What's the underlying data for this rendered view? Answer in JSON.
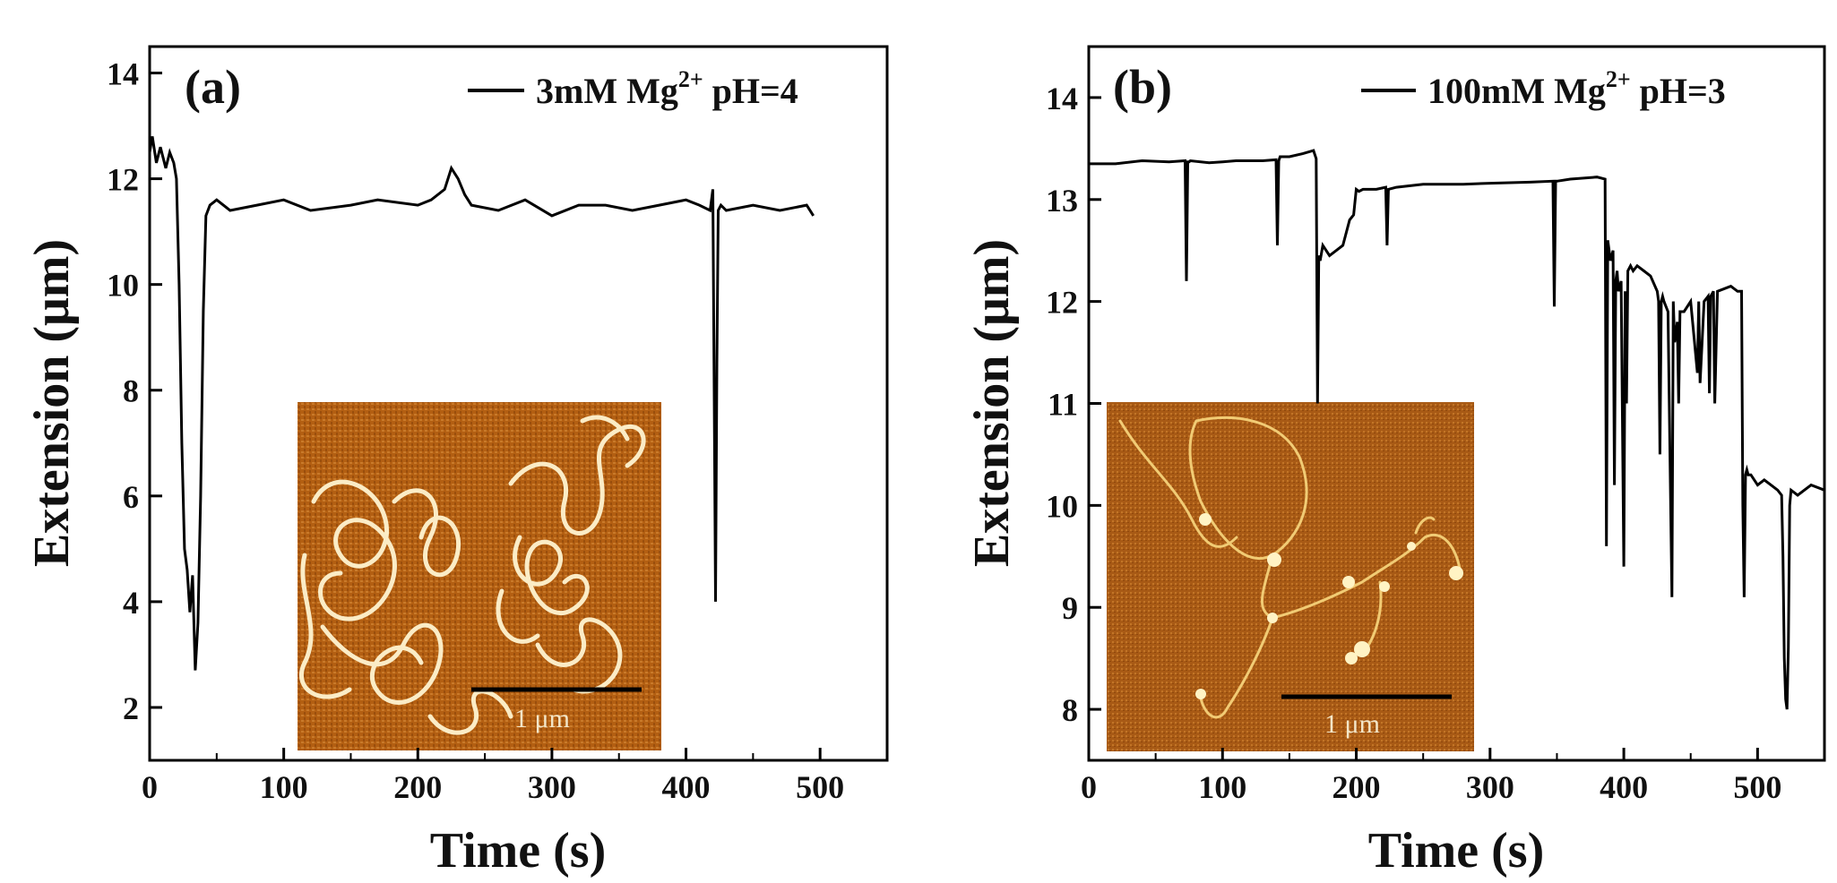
{
  "chart_data": [
    {
      "type": "line",
      "panel_label": "(a)",
      "legend": {
        "label_main": "3mM Mg",
        "label_sup": "2+",
        "label_tail": " pH=4",
        "position": "top-right"
      },
      "xlabel": "Time (s)",
      "ylabel": "Extension (μm)",
      "xlim": [
        0,
        550
      ],
      "ylim": [
        1,
        14.5
      ],
      "xticks": [
        0,
        100,
        200,
        300,
        400,
        500
      ],
      "yticks": [
        2,
        4,
        6,
        8,
        10,
        12,
        14
      ],
      "series": [
        {
          "name": "3mM Mg2+ pH=4",
          "x": [
            0,
            2,
            5,
            8,
            12,
            15,
            18,
            20,
            22,
            24,
            26,
            28,
            30,
            32,
            34,
            36,
            38,
            40,
            42,
            45,
            50,
            60,
            80,
            100,
            120,
            150,
            170,
            200,
            210,
            220,
            225,
            230,
            235,
            240,
            260,
            280,
            300,
            320,
            340,
            360,
            380,
            400,
            410,
            418,
            420,
            421,
            422,
            423,
            424,
            426,
            430,
            450,
            470,
            490,
            495
          ],
          "y": [
            12.5,
            12.8,
            12.3,
            12.6,
            12.2,
            12.5,
            12.3,
            12.0,
            10.0,
            7.0,
            5.0,
            4.6,
            3.8,
            4.5,
            2.7,
            3.6,
            6.0,
            9.5,
            11.3,
            11.5,
            11.6,
            11.4,
            11.5,
            11.6,
            11.4,
            11.5,
            11.6,
            11.5,
            11.6,
            11.8,
            12.2,
            12.0,
            11.7,
            11.5,
            11.4,
            11.6,
            11.3,
            11.5,
            11.5,
            11.4,
            11.5,
            11.6,
            11.5,
            11.4,
            11.8,
            8.0,
            4.0,
            8.5,
            11.4,
            11.5,
            11.4,
            11.5,
            11.4,
            11.5,
            11.3
          ]
        }
      ],
      "inset": {
        "description_caption": "1 μm"
      }
    },
    {
      "type": "line",
      "panel_label": "(b)",
      "legend": {
        "label_main": "100mM Mg",
        "label_sup": "2+",
        "label_tail": " pH=3",
        "position": "top-right"
      },
      "xlabel": "Time (s)",
      "ylabel": "Extension (μm)",
      "xlim": [
        0,
        550
      ],
      "ylim": [
        7.5,
        14.5
      ],
      "xticks": [
        0,
        100,
        200,
        300,
        400,
        500
      ],
      "yticks": [
        8,
        9,
        10,
        11,
        12,
        13,
        14
      ],
      "series": [
        {
          "name": "100mM Mg2+ pH=3",
          "x": [
            0,
            20,
            40,
            60,
            72,
            73,
            74,
            75,
            76,
            90,
            100,
            110,
            120,
            130,
            140,
            141,
            142,
            143,
            150,
            160,
            168,
            170,
            171,
            172,
            173,
            175,
            180,
            185,
            190,
            195,
            198,
            200,
            202,
            205,
            215,
            222,
            223,
            224,
            230,
            250,
            280,
            300,
            330,
            347,
            348,
            349,
            350,
            360,
            380,
            386,
            387,
            388,
            390,
            392,
            393,
            394,
            395,
            396,
            398,
            400,
            401,
            402,
            403,
            405,
            407,
            410,
            415,
            420,
            425,
            426,
            427,
            428,
            429,
            430,
            433,
            436,
            437,
            438,
            440,
            441,
            442,
            445,
            450,
            455,
            456,
            457,
            460,
            463,
            464,
            465,
            467,
            468,
            470,
            480,
            485,
            488,
            489,
            490,
            491,
            492,
            493,
            495,
            500,
            505,
            510,
            515,
            518,
            519,
            520,
            521,
            522,
            523,
            524,
            525,
            530,
            540,
            550
          ],
          "y": [
            13.35,
            13.35,
            13.38,
            13.37,
            13.38,
            12.2,
            13.37,
            13.37,
            13.38,
            13.36,
            13.37,
            13.38,
            13.38,
            13.38,
            13.39,
            12.55,
            13.38,
            13.42,
            13.42,
            13.45,
            13.48,
            13.4,
            11.0,
            12.45,
            12.4,
            12.55,
            12.45,
            12.5,
            12.55,
            12.8,
            12.85,
            13.1,
            13.08,
            13.1,
            13.1,
            13.12,
            12.55,
            13.1,
            13.12,
            13.15,
            13.15,
            13.16,
            13.17,
            13.18,
            11.95,
            13.18,
            13.18,
            13.2,
            13.22,
            13.2,
            9.6,
            12.6,
            12.4,
            12.5,
            10.2,
            12.2,
            12.3,
            12.1,
            12.2,
            9.4,
            12.1,
            11.0,
            12.3,
            12.35,
            12.3,
            12.35,
            12.3,
            12.25,
            12.1,
            12.0,
            10.5,
            12.0,
            12.05,
            12.0,
            11.9,
            9.1,
            12.0,
            11.6,
            11.8,
            11.0,
            11.9,
            11.9,
            12.0,
            11.3,
            12.0,
            11.2,
            12.0,
            12.05,
            11.1,
            12.05,
            12.1,
            11.0,
            12.1,
            12.15,
            12.1,
            12.1,
            10.0,
            9.1,
            10.3,
            10.35,
            10.3,
            10.3,
            10.2,
            10.25,
            10.2,
            10.15,
            10.1,
            9.5,
            8.5,
            8.1,
            8.0,
            8.6,
            10.0,
            10.15,
            10.1,
            10.2,
            10.15
          ],
          "inset": {
            "description_caption": "1 μm"
          }
        }
      ],
      "inset": {
        "description_caption": "1 μm"
      }
    }
  ]
}
